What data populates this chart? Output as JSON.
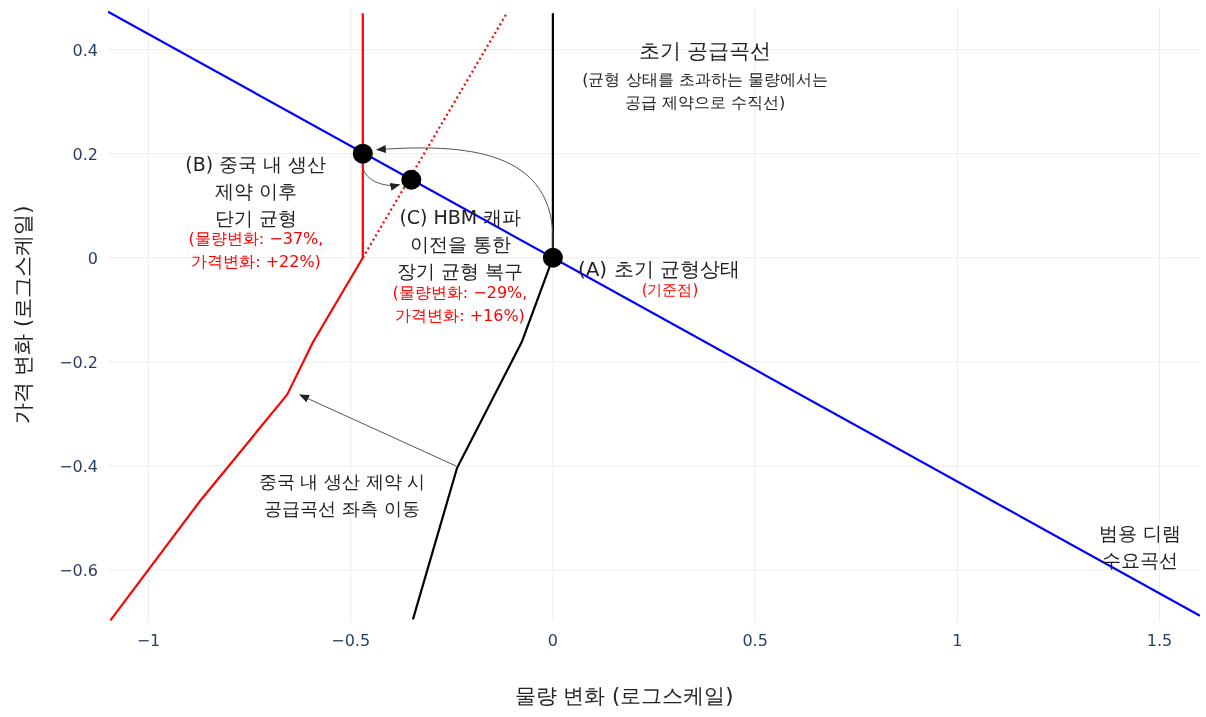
{
  "chart_data": {
    "type": "line",
    "xlabel": "물량 변화 (로그스케일)",
    "ylabel": "가격 변화 (로그스케일)",
    "xlim": [
      -1.1,
      1.6
    ],
    "ylim": [
      -0.7,
      0.48
    ],
    "xticks": [
      {
        "value": -1,
        "label": "−1"
      },
      {
        "value": -0.5,
        "label": "−0.5"
      },
      0,
      0.5,
      1,
      1.5
    ],
    "yticks": [
      {
        "value": -0.6,
        "label": "−0.6"
      },
      {
        "value": -0.4,
        "label": "−0.4"
      },
      {
        "value": -0.2,
        "label": "−0.2"
      },
      0,
      0.2,
      0.4
    ],
    "grid": true,
    "series": [
      {
        "name": "범용 디램\n수요곡선",
        "color": "#0000ff",
        "x": [
          -1.1,
          1.6
        ],
        "values": [
          0.473,
          -0.688
        ]
      },
      {
        "color": "#000000",
        "x": [
          -0.346,
          -0.237,
          -0.077,
          0,
          0
        ],
        "values": [
          -0.695,
          -0.404,
          -0.162,
          0,
          0.47
        ]
      },
      {
        "color": "#ff0000",
        "x": [
          -1.094,
          -0.872,
          -0.657,
          -0.593,
          -0.47,
          -0.47
        ],
        "values": [
          -0.697,
          -0.467,
          -0.263,
          -0.162,
          0,
          0.47
        ]
      },
      {
        "color": "#ff0000",
        "line_style": "dotted",
        "x": [
          -0.47,
          -0.114
        ],
        "values": [
          0,
          0.47
        ]
      },
      {
        "type": "scatter",
        "marker": "circle",
        "color": "#000000",
        "x": [
          0,
          -0.47,
          -0.35
        ],
        "values": [
          0,
          0.2,
          0.15
        ]
      }
    ],
    "annotations": [
      "초기 공급곡선",
      "(균형 상태를 초과하는 물량에서는\n공급 제약으로 수직선)",
      {
        "text": "(B) 중국 내 생산\n제약 이후\n단기 균형",
        "x": -0.47,
        "y": 0.2
      },
      "(물량변화: −37%,\n가격변화: +22%)",
      {
        "text": "(C) HBM 캐파\n이전을 통한\n장기 균형 복구",
        "x": -0.35,
        "y": 0.15
      },
      "(물량변화: −29%,\n가격변화: +16%)",
      {
        "text": "(A) 초기 균형상태",
        "x": 0,
        "y": 0
      },
      "(기준점)",
      "중국 내 생산 제약 시\n공급곡선 좌측 이동"
    ]
  }
}
